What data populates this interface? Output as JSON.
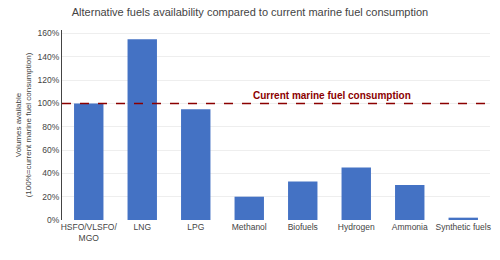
{
  "chart_data": {
    "type": "bar",
    "title": "Alternative fuels availability compared to current marine fuel consumption",
    "categories": [
      "HSFO/VLSFO/\nMGO",
      "LNG",
      "LPG",
      "Methanol",
      "Biofuels",
      "Hydrogen",
      "Ammonia",
      "Synthetic fuels"
    ],
    "values": [
      100,
      155,
      95,
      20,
      33,
      45,
      30,
      2
    ],
    "color": "#4472C4",
    "ylabel": "Volumes available\n(100%=current marine fuel consumption)",
    "ylim": [
      0,
      163
    ],
    "yticks": [
      {
        "value": 0,
        "label": "0%"
      },
      {
        "value": 20,
        "label": "20%"
      },
      {
        "value": 40,
        "label": "40%"
      },
      {
        "value": 60,
        "label": "60%"
      },
      {
        "value": 80,
        "label": "80%"
      },
      {
        "value": 100,
        "label": "100%"
      },
      {
        "value": 120,
        "label": "120%"
      },
      {
        "value": 140,
        "label": "140%"
      },
      {
        "value": 160,
        "label": "160%"
      }
    ],
    "grid": true,
    "annotations": [
      {
        "type": "hline",
        "y": 100,
        "text": "Current marine fuel consumption",
        "color": "#8B0000",
        "line_style": "dashed"
      }
    ]
  }
}
